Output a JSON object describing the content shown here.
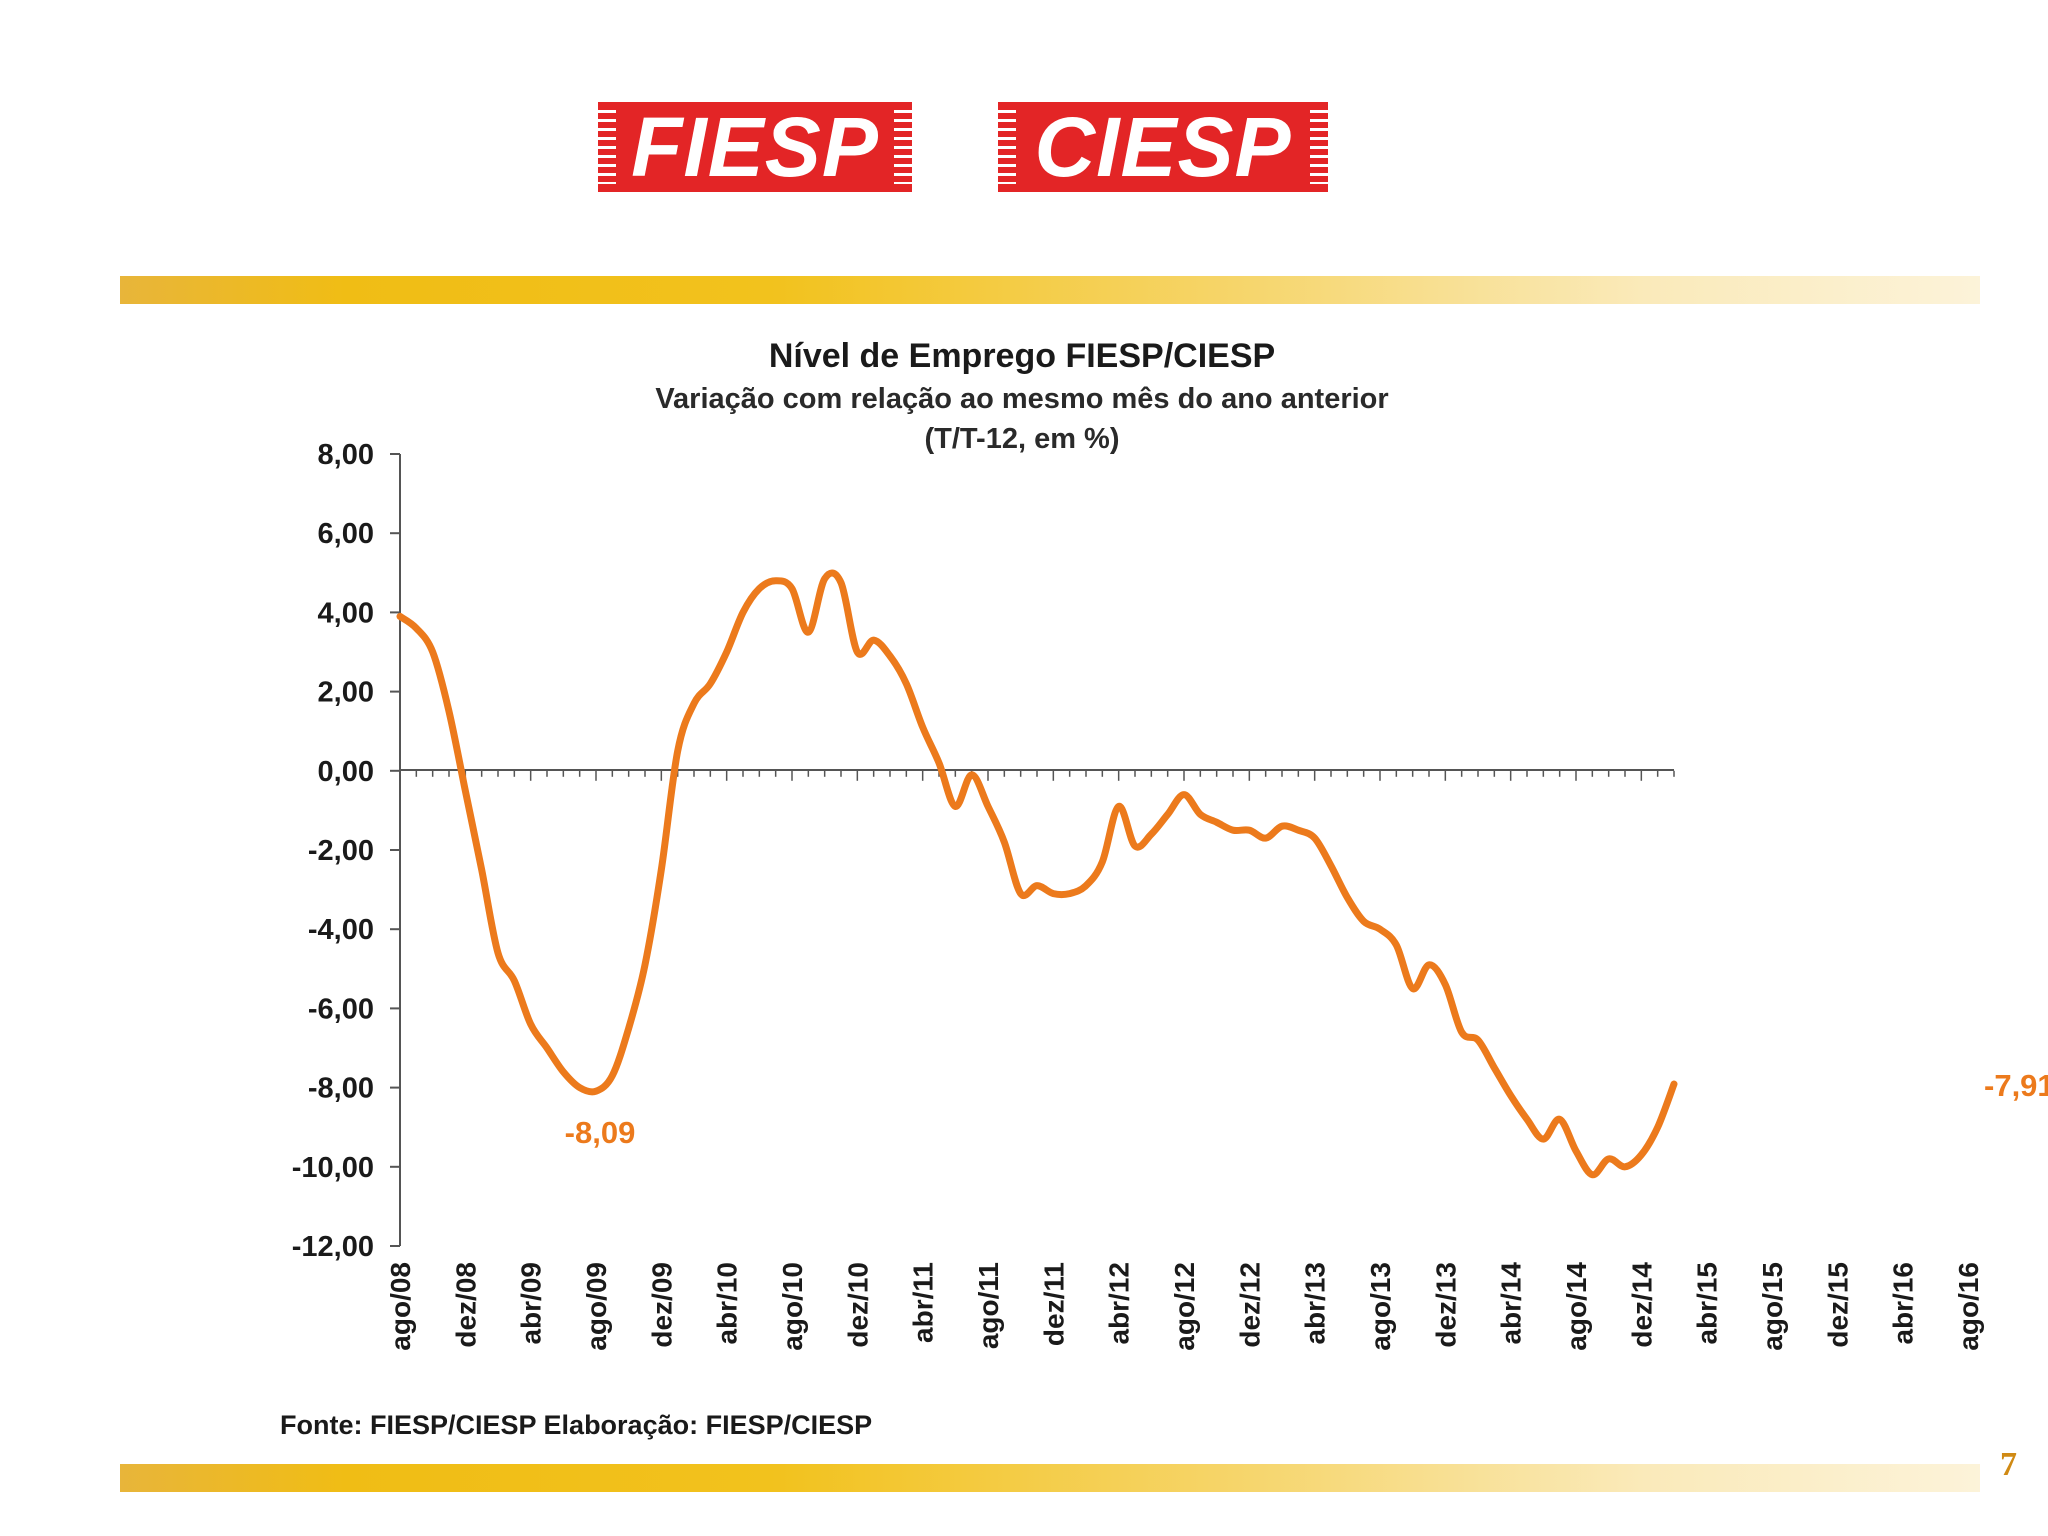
{
  "logos": {
    "left": "FIESP",
    "right": "CIESP"
  },
  "page_number": "7",
  "colors": {
    "line": "#ec7a1c",
    "logo": "#e32526",
    "stripe": "#f0bd15"
  },
  "chart_data": {
    "type": "line",
    "title": "Nível de Emprego FIESP/CIESP",
    "subtitle_lines": [
      "Variação com relação ao mesmo mês do ano anterior",
      "(T/T-12, em %)"
    ],
    "source": "Fonte: FIESP/CIESP   Elaboração: FIESP/CIESP",
    "ylim": [
      -12,
      8
    ],
    "yticks": [
      8,
      6,
      4,
      2,
      0,
      -2,
      -4,
      -6,
      -8,
      -10,
      -12
    ],
    "ytick_labels": [
      "8,00",
      "6,00",
      "4,00",
      "2,00",
      "0,00",
      "-2,00",
      "-4,00",
      "-6,00",
      "-8,00",
      "-10,00",
      "-12,00"
    ],
    "xlabels": [
      "ago/08",
      "dez/08",
      "abr/09",
      "ago/09",
      "dez/09",
      "abr/10",
      "ago/10",
      "dez/10",
      "abr/11",
      "ago/11",
      "dez/11",
      "abr/12",
      "ago/12",
      "dez/12",
      "abr/13",
      "ago/13",
      "dez/13",
      "abr/14",
      "ago/14",
      "dez/14",
      "abr/15",
      "ago/15",
      "dez/15",
      "abr/16",
      "ago/16"
    ],
    "series": [
      {
        "name": "Nível de Emprego",
        "values": [
          3.9,
          3.6,
          3.0,
          1.5,
          -0.5,
          -2.5,
          -4.6,
          -5.3,
          -6.4,
          -7.0,
          -7.6,
          -8.0,
          -8.09,
          -7.7,
          -6.5,
          -4.9,
          -2.5,
          0.5,
          1.7,
          2.2,
          3.0,
          4.0,
          4.6,
          4.8,
          4.6,
          3.5,
          4.85,
          4.75,
          3.0,
          3.3,
          2.9,
          2.2,
          1.1,
          0.2,
          -0.9,
          -0.1,
          -0.9,
          -1.8,
          -3.1,
          -2.9,
          -3.1,
          -3.1,
          -2.9,
          -2.3,
          -0.9,
          -1.9,
          -1.6,
          -1.1,
          -0.6,
          -1.1,
          -1.3,
          -1.5,
          -1.5,
          -1.7,
          -1.4,
          -1.5,
          -1.7,
          -2.4,
          -3.2,
          -3.8,
          -4.0,
          -4.4,
          -5.5,
          -4.9,
          -5.4,
          -6.6,
          -6.8,
          -7.5,
          -8.2,
          -8.8,
          -9.3,
          -8.8,
          -9.6,
          -10.2,
          -9.8,
          -10.0,
          -9.7,
          -9.0,
          -7.91
        ]
      }
    ],
    "annotations": [
      {
        "text": "-8,09",
        "value": -8.09,
        "month_index": 12
      },
      {
        "text": "-7,91",
        "value": -7.91,
        "month_index": 96
      }
    ]
  }
}
